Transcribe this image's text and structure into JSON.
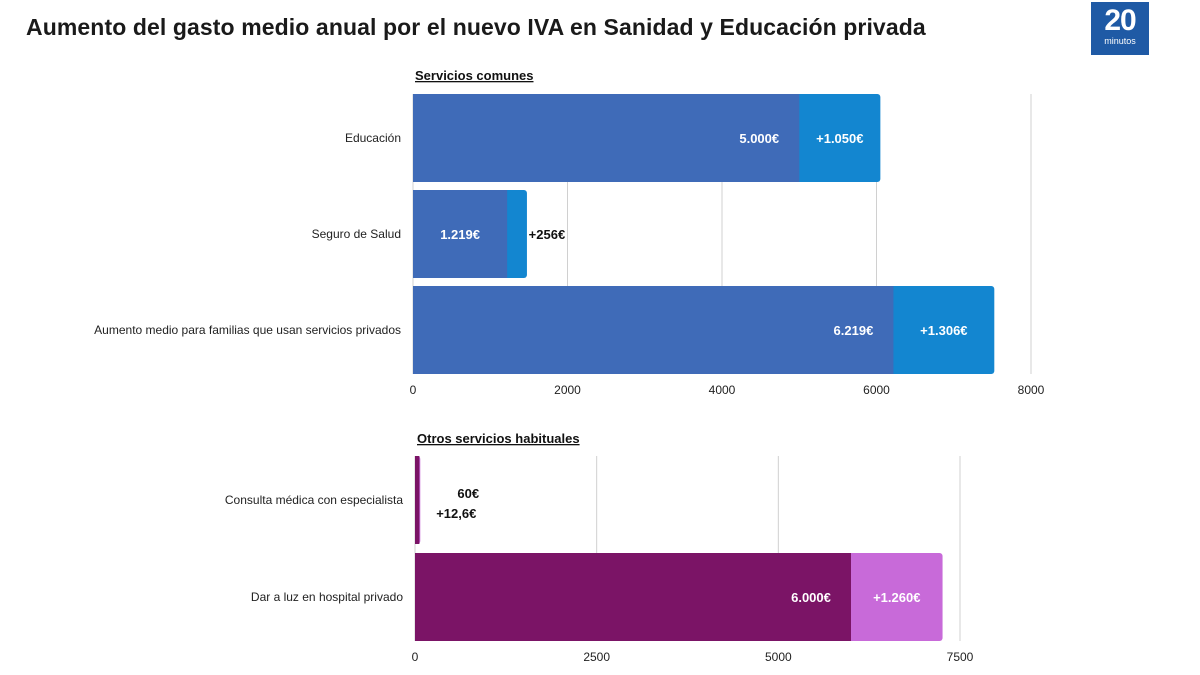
{
  "title": "Aumento del gasto medio anual por el nuevo IVA en Sanidad y Educación privada",
  "logo": {
    "main": "20",
    "sub": "minutos"
  },
  "chart_data": [
    {
      "type": "bar",
      "orientation": "horizontal",
      "stacked": true,
      "title": "Servicios comunes",
      "categories": [
        "Educación",
        "Seguro de Salud",
        "Aumento medio para familias que usan servicios privados"
      ],
      "series": [
        {
          "values": [
            5000,
            1219,
            6219
          ],
          "labels": [
            "5.000€",
            "1.219€",
            "6.219€"
          ],
          "color": "#3f6bb8"
        },
        {
          "values": [
            1050,
            256,
            1306
          ],
          "labels": [
            "+1.050€",
            "+256€",
            "+1.306€"
          ],
          "color": "#1386d0"
        }
      ],
      "xlim": [
        0,
        8000
      ],
      "xticks": [
        "0",
        "2000",
        "4000",
        "6000",
        "8000"
      ],
      "grid": true
    },
    {
      "type": "bar",
      "orientation": "horizontal",
      "stacked": true,
      "title": "Otros servicios habituales",
      "categories": [
        "Consulta médica con especialista",
        "Dar a luz en hospital privado"
      ],
      "series": [
        {
          "values": [
            60,
            6000
          ],
          "labels": [
            "60€",
            "6.000€"
          ],
          "color": "#7b1466"
        },
        {
          "values": [
            12.6,
            1260
          ],
          "labels": [
            "+12,6€",
            "+1.260€"
          ],
          "color": "#c86ad9"
        }
      ],
      "xlim": [
        0,
        7500
      ],
      "xticks": [
        "0",
        "2500",
        "5000",
        "7500"
      ],
      "grid": true
    }
  ]
}
